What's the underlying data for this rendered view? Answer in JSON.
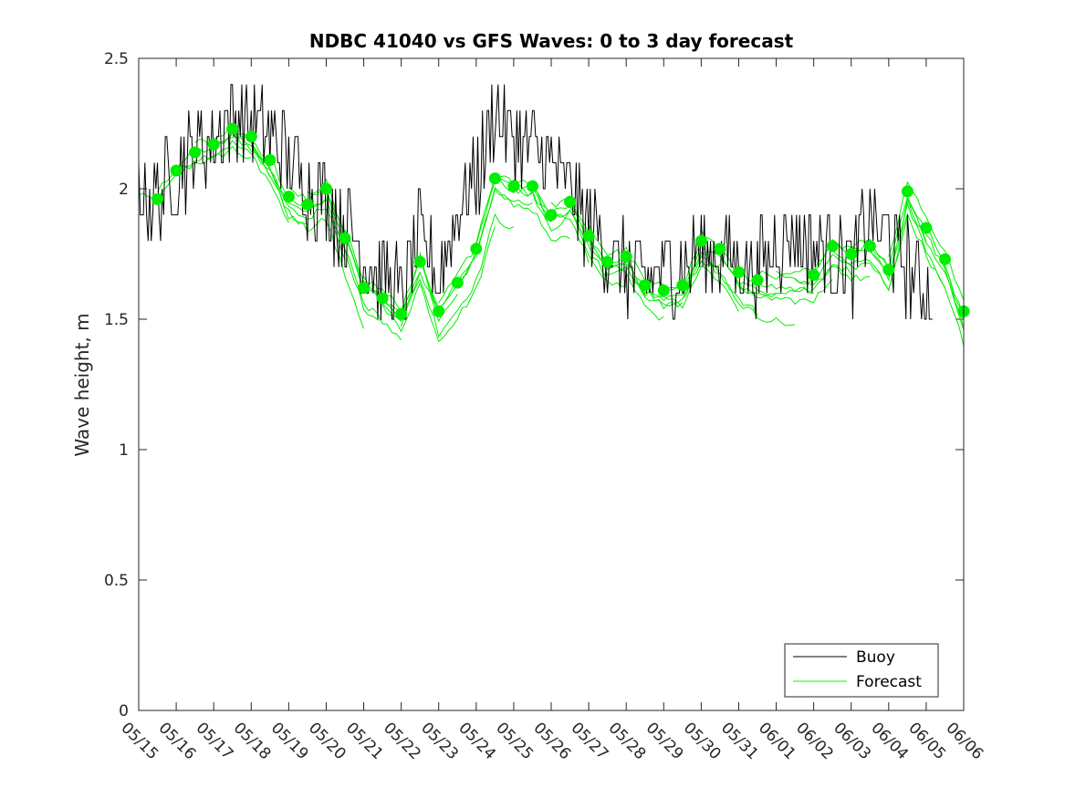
{
  "chart_data": {
    "type": "line",
    "title": "NDBC 41040 vs GFS Waves: 0 to 3 day forecast",
    "xlabel": "",
    "ylabel": "Wave height, m",
    "xlim": [
      "05/15",
      "06/06"
    ],
    "ylim": [
      0,
      2.5
    ],
    "y_ticks": [
      "0",
      "0.5",
      "1",
      "1.5",
      "2",
      "2.5"
    ],
    "x_ticks": [
      "05/15",
      "05/16",
      "05/17",
      "05/18",
      "05/19",
      "05/20",
      "05/21",
      "05/22",
      "05/23",
      "05/24",
      "05/25",
      "05/26",
      "05/27",
      "05/28",
      "05/29",
      "05/30",
      "05/31",
      "06/01",
      "06/02",
      "06/03",
      "06/04",
      "06/05",
      "06/06"
    ],
    "grid": false,
    "legend": {
      "position": "bottom-right",
      "entries": [
        {
          "label": "Buoy",
          "color": "#000000"
        },
        {
          "label": "Forecast",
          "color": "#00ff00"
        }
      ]
    },
    "buoy": {
      "name": "Buoy",
      "color": "#000000",
      "x_days_from_0515": [
        0,
        0.5,
        1,
        1.5,
        2,
        2.5,
        3,
        3.5,
        4,
        4.5,
        5,
        5.5,
        6,
        6.5,
        7,
        7.5,
        8,
        8.5,
        9,
        9.5,
        10,
        10.5,
        11,
        11.5,
        12,
        12.5,
        13,
        13.5,
        14,
        14.5,
        15,
        15.5,
        16,
        16.5,
        17,
        17.5,
        18,
        18.5,
        19,
        19.5,
        20,
        20.5,
        21,
        21.5,
        22
      ],
      "values": [
        2.0,
        1.95,
        2.05,
        2.15,
        2.2,
        2.3,
        2.25,
        2.2,
        2.1,
        2.0,
        1.95,
        1.85,
        1.75,
        1.65,
        1.6,
        1.8,
        1.65,
        1.9,
        2.05,
        2.3,
        2.2,
        2.15,
        2.1,
        2.0,
        1.85,
        1.75,
        1.7,
        1.65,
        1.7,
        1.7,
        1.75,
        1.75,
        1.7,
        1.7,
        1.8,
        1.8,
        1.8,
        1.75,
        1.7,
        1.9,
        1.8,
        1.7,
        1.6,
        1.5,
        1.5
      ]
    },
    "forecast_points": {
      "name": "Forecast",
      "color": "#00ee00",
      "x": [
        "05/15 12:00",
        "05/16 00:00",
        "05/16 12:00",
        "05/17 00:00",
        "05/17 12:00",
        "05/18 00:00",
        "05/18 12:00",
        "05/19 00:00",
        "05/19 12:00",
        "05/20 00:00",
        "05/20 12:00",
        "05/21 00:00",
        "05/21 12:00",
        "05/22 00:00",
        "05/22 12:00",
        "05/23 00:00",
        "05/23 12:00",
        "05/24 00:00",
        "05/24 12:00",
        "05/25 00:00",
        "05/25 12:00",
        "05/26 00:00",
        "05/26 12:00",
        "05/27 00:00",
        "05/27 12:00",
        "05/28 00:00",
        "05/28 12:00",
        "05/29 00:00",
        "05/29 12:00",
        "05/30 00:00",
        "05/30 12:00",
        "05/31 00:00",
        "05/31 12:00",
        "06/01 00:00",
        "06/01 12:00",
        "06/02 00:00",
        "06/02 12:00",
        "06/03 00:00",
        "06/03 12:00",
        "06/04 00:00",
        "06/04 12:00",
        "06/05 00:00"
      ],
      "values": [
        1.96,
        2.07,
        2.14,
        2.17,
        2.23,
        2.2,
        2.11,
        1.97,
        1.94,
        2.0,
        1.81,
        1.62,
        1.58,
        1.52,
        1.72,
        1.53,
        1.64,
        1.77,
        2.04,
        2.01,
        2.01,
        1.9,
        1.95,
        1.82,
        1.72,
        1.74,
        1.63,
        1.61,
        1.63,
        1.8,
        1.77,
        1.68,
        1.65,
        1.67,
        1.78,
        1.75,
        1.78,
        1.69,
        1.99,
        1.85,
        1.73,
        1.53
      ]
    }
  }
}
